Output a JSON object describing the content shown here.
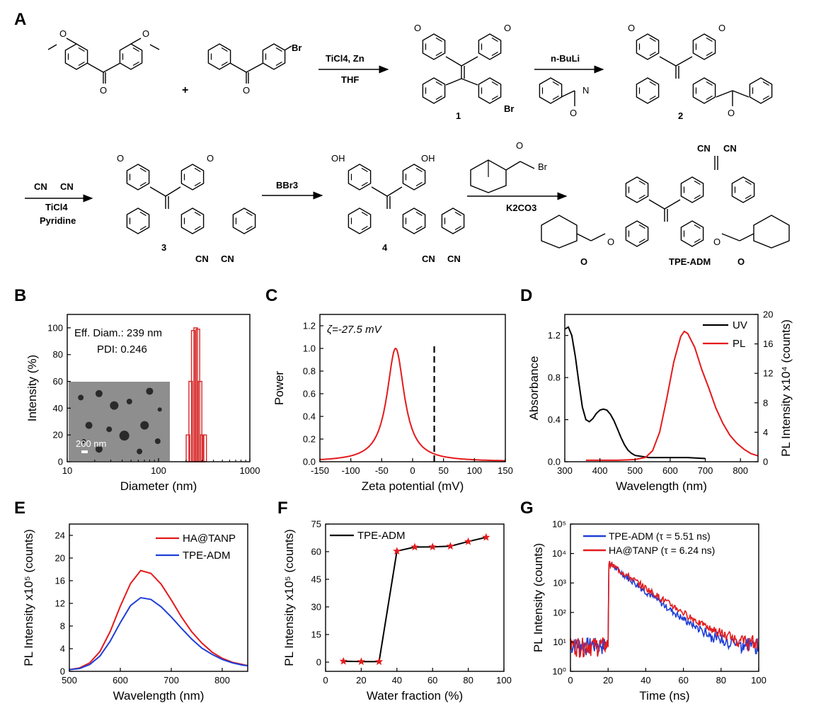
{
  "panels": {
    "A": "A",
    "B": "B",
    "C": "C",
    "D": "D",
    "E": "E",
    "F": "F",
    "G": "G"
  },
  "scheme": {
    "reagent1_top": "TiCl4, Zn",
    "reagent1_bottom": "THF",
    "reagent2_top": "n-BuLi",
    "reagent3_lines": [
      "CN",
      "CN",
      "TiCl4",
      "Pyridine"
    ],
    "reagent4": "BBr3",
    "reagent5": "K2CO3",
    "br": "Br",
    "plus": "+",
    "cn": "CN",
    "oh": "OH",
    "o": "O",
    "n": "N",
    "compound_labels": [
      "1",
      "2",
      "3",
      "4",
      "TPE-ADM"
    ]
  },
  "chart_data": [
    {
      "panel": "B",
      "type": "bar",
      "xscale": "log",
      "xlim": [
        10,
        1000
      ],
      "ylim": [
        0,
        110
      ],
      "xlabel": "Diameter (nm)",
      "ylabel": "Intensity (%)",
      "xticks": [
        10,
        100,
        1000
      ],
      "yticks": [
        0,
        20,
        40,
        60,
        80,
        100
      ],
      "bars_x": [
        210,
        225,
        240,
        255,
        270,
        285,
        300,
        320
      ],
      "bars_y": [
        20,
        60,
        98,
        100,
        99,
        60,
        20,
        20
      ],
      "annotations": [
        "Eff. Diam.: 239 nm",
        "PDI: 0.246"
      ],
      "inset_label": "200 nm",
      "bar_color": "#d62728"
    },
    {
      "panel": "C",
      "type": "line",
      "xlim": [
        -150,
        150
      ],
      "ylim": [
        0,
        1.3
      ],
      "xlabel": "Zeta potential  (mV)",
      "ylabel": "Power",
      "xticks": [
        -150,
        -100,
        -50,
        0,
        50,
        100,
        150
      ],
      "yticks": [
        0.0,
        0.2,
        0.4,
        0.6,
        0.8,
        1.0,
        1.2
      ],
      "annotation": "ζ=-27.5 mV",
      "peak_center": -27.5,
      "peak_width": 17,
      "dashed_x": 35,
      "series": [
        {
          "color": "#e41a1c"
        }
      ]
    },
    {
      "panel": "D",
      "type": "line",
      "xlim": [
        300,
        850
      ],
      "ylim": [
        0,
        1.4
      ],
      "y2lim": [
        0,
        20
      ],
      "xlabel": "Wavelength (nm)",
      "ylabel": "Absorbance",
      "y2label": "PL Intensity x10⁴ (counts)",
      "xticks": [
        300,
        400,
        500,
        600,
        700,
        800
      ],
      "yticks": [
        0.0,
        0.4,
        0.8,
        1.2
      ],
      "y2ticks": [
        0,
        4,
        8,
        12,
        16,
        20
      ],
      "series": [
        {
          "name": "UV",
          "color": "#000000",
          "x": [
            300,
            310,
            320,
            330,
            340,
            350,
            360,
            370,
            380,
            390,
            400,
            410,
            420,
            430,
            440,
            450,
            460,
            470,
            480,
            490,
            500,
            520,
            540,
            560,
            600,
            650,
            700
          ],
          "y": [
            1.26,
            1.28,
            1.2,
            1.0,
            0.75,
            0.52,
            0.4,
            0.38,
            0.41,
            0.46,
            0.49,
            0.5,
            0.49,
            0.45,
            0.39,
            0.31,
            0.23,
            0.16,
            0.11,
            0.08,
            0.06,
            0.05,
            0.04,
            0.04,
            0.04,
            0.04,
            0.03
          ]
        },
        {
          "name": "PL",
          "color": "#e41a1c",
          "axis": "right",
          "x": [
            360,
            400,
            450,
            500,
            530,
            550,
            570,
            590,
            610,
            630,
            640,
            650,
            670,
            690,
            710,
            730,
            750,
            770,
            790,
            810,
            830,
            850
          ],
          "y": [
            0.2,
            0.2,
            0.2,
            0.3,
            0.6,
            1.5,
            4.0,
            8.5,
            13.5,
            17.0,
            17.7,
            17.4,
            15.5,
            12.5,
            10.0,
            7.3,
            5.2,
            3.6,
            2.5,
            1.7,
            1.1,
            0.8
          ]
        }
      ]
    },
    {
      "panel": "E",
      "type": "line",
      "xlim": [
        500,
        850
      ],
      "ylim": [
        0,
        26
      ],
      "xlabel": "Wavelength (nm)",
      "ylabel": "PL Intensity x10⁵ (counts)",
      "xticks": [
        500,
        600,
        700,
        800
      ],
      "yticks": [
        0,
        4,
        8,
        12,
        16,
        20,
        24
      ],
      "series": [
        {
          "name": "HA@TANP",
          "color": "#e41a1c",
          "x": [
            500,
            520,
            540,
            560,
            580,
            600,
            620,
            640,
            660,
            680,
            700,
            720,
            740,
            760,
            780,
            800,
            820,
            840,
            850
          ],
          "y": [
            0.3,
            0.6,
            1.5,
            3.5,
            7.0,
            11.5,
            15.5,
            17.8,
            17.3,
            15.4,
            12.6,
            9.6,
            7.0,
            5.0,
            3.4,
            2.3,
            1.6,
            1.2,
            1.0
          ]
        },
        {
          "name": "TPE-ADM",
          "color": "#1f3fd6",
          "x": [
            500,
            520,
            540,
            560,
            580,
            600,
            620,
            640,
            660,
            680,
            700,
            720,
            740,
            760,
            780,
            800,
            820,
            840,
            850
          ],
          "y": [
            0.3,
            0.5,
            1.2,
            2.7,
            5.3,
            8.6,
            11.6,
            13.0,
            12.7,
            11.4,
            9.6,
            7.6,
            5.7,
            4.1,
            3.0,
            2.1,
            1.5,
            1.1,
            1.0
          ]
        }
      ]
    },
    {
      "panel": "F",
      "type": "line",
      "xlim": [
        0,
        100
      ],
      "ylim": [
        -5,
        75
      ],
      "xlabel": "Water fraction (%)",
      "ylabel": "PL Intensity x10⁵ (counts)",
      "xticks": [
        0,
        20,
        40,
        60,
        80,
        100
      ],
      "yticks": [
        0,
        15,
        30,
        45,
        60,
        75
      ],
      "series": [
        {
          "name": "TPE-ADM",
          "color": "#000000",
          "marker_color": "#e41a1c",
          "x": [
            10,
            20,
            30,
            40,
            50,
            60,
            70,
            80,
            90
          ],
          "y": [
            0.5,
            0.3,
            0.3,
            60.3,
            62.5,
            62.6,
            63.0,
            65.5,
            67.8
          ]
        }
      ]
    },
    {
      "panel": "G",
      "type": "line",
      "xscale": "linear",
      "yscale": "log",
      "xlim": [
        0,
        100
      ],
      "ylim": [
        1,
        100000
      ],
      "xlabel": "Time (ns)",
      "ylabel": "PL Intensity (counts)",
      "xticks": [
        0,
        20,
        40,
        60,
        80,
        100
      ],
      "yticks": [
        "10⁰",
        "10¹",
        "10²",
        "10³",
        "10⁴",
        "10⁵"
      ],
      "peak_time": 20,
      "peak_counts": 5000,
      "baseline_counts": 6,
      "series": [
        {
          "name": "TPE-ADM  (τ = 5.51 ns)",
          "color": "#1f3fd6",
          "tau": 5.51
        },
        {
          "name": "HA@TANP (τ = 6.24 ns)",
          "color": "#e41a1c",
          "tau": 6.24
        }
      ]
    }
  ]
}
